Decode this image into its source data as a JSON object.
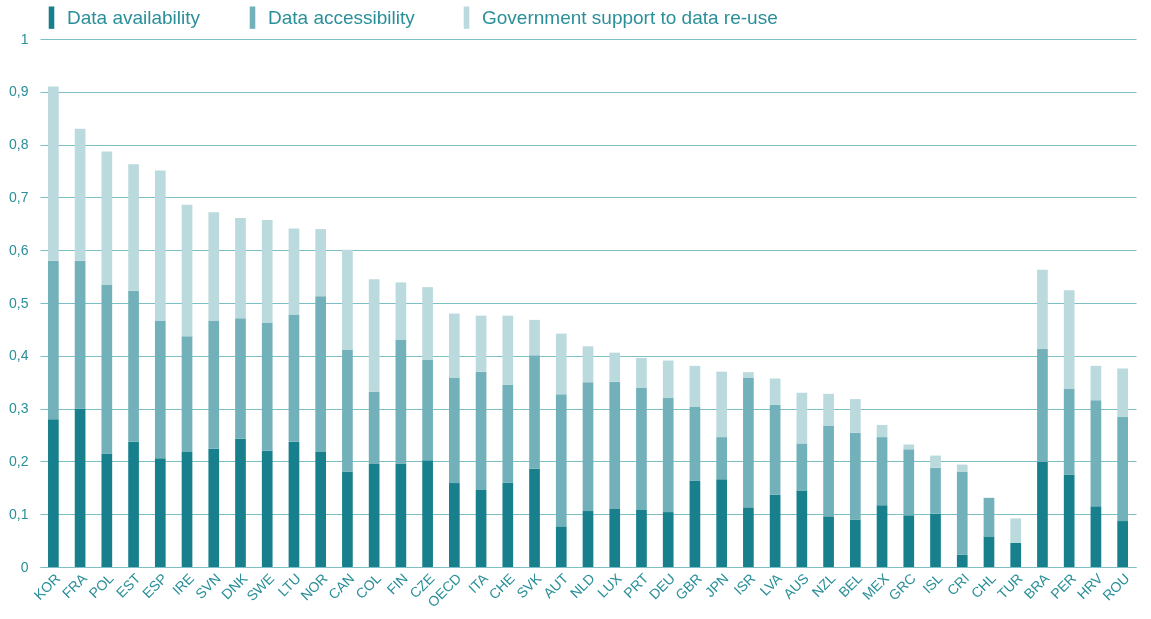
{
  "chart_data": {
    "type": "bar",
    "stacked": true,
    "legend": "top left",
    "grid": "y",
    "categories": [
      "KOR",
      "FRA",
      "POL",
      "EST",
      "ESP",
      "IRE",
      "SVN",
      "DNK",
      "SWE",
      "LTU",
      "NOR",
      "CAN",
      "COL",
      "FIN",
      "CZE",
      "OECD",
      "ITA",
      "CHE",
      "SVK",
      "AUT",
      "NLD",
      "LUX",
      "PRT",
      "DEU",
      "GBR",
      "JPN",
      "ISR",
      "LVA",
      "AUS",
      "NZL",
      "BEL",
      "MEX",
      "GRC",
      "ISL",
      "CRI",
      "CHL",
      "TUR",
      "BRA",
      "PER",
      "HRV",
      "ROU"
    ],
    "series": [
      {
        "name": "Data availability",
        "color": "#17808c",
        "values": [
          0.28,
          0.3,
          0.215,
          0.237,
          0.206,
          0.218,
          0.224,
          0.243,
          0.22,
          0.237,
          0.218,
          0.181,
          0.195,
          0.196,
          0.202,
          0.159,
          0.146,
          0.16,
          0.186,
          0.077,
          0.106,
          0.11,
          0.108,
          0.104,
          0.163,
          0.166,
          0.113,
          0.137,
          0.145,
          0.096,
          0.09,
          0.117,
          0.098,
          0.101,
          0.023,
          0.058,
          0.046,
          0.199,
          0.175,
          0.115,
          0.087
        ]
      },
      {
        "name": "Data accessibility",
        "color": "#72b1b9",
        "values": [
          0.3,
          0.28,
          0.32,
          0.286,
          0.26,
          0.219,
          0.243,
          0.228,
          0.243,
          0.241,
          0.295,
          0.231,
          0.137,
          0.235,
          0.191,
          0.199,
          0.224,
          0.185,
          0.215,
          0.25,
          0.244,
          0.241,
          0.232,
          0.216,
          0.14,
          0.08,
          0.245,
          0.17,
          0.089,
          0.172,
          0.164,
          0.129,
          0.125,
          0.087,
          0.157,
          0.073,
          0,
          0.214,
          0.162,
          0.201,
          0.197
        ]
      },
      {
        "name": "Government support to data re-use",
        "color": "#bbdadd",
        "values": [
          0.33,
          0.25,
          0.252,
          0.24,
          0.285,
          0.249,
          0.205,
          0.19,
          0.194,
          0.163,
          0.127,
          0.189,
          0.213,
          0.108,
          0.137,
          0.122,
          0.106,
          0.131,
          0.067,
          0.115,
          0.068,
          0.055,
          0.056,
          0.071,
          0.078,
          0.124,
          0.011,
          0.05,
          0.096,
          0.06,
          0.064,
          0.023,
          0.009,
          0.023,
          0.014,
          0,
          0.046,
          0.15,
          0.187,
          0.065,
          0.092
        ]
      }
    ],
    "ylim": [
      0,
      1
    ],
    "yticks": [
      0,
      {
        "value": 0.1,
        "label": "0,1"
      },
      {
        "value": 0.2,
        "label": "0,2"
      },
      {
        "value": 0.3,
        "label": "0,3"
      },
      {
        "value": 0.4,
        "label": "0,4"
      },
      {
        "value": 0.5,
        "label": "0,5"
      },
      {
        "value": 0.6,
        "label": "0,6"
      },
      {
        "value": 0.7,
        "label": "0,7"
      },
      {
        "value": 0.8,
        "label": "0,8"
      },
      {
        "value": 0.9,
        "label": "0,9"
      },
      1
    ]
  }
}
